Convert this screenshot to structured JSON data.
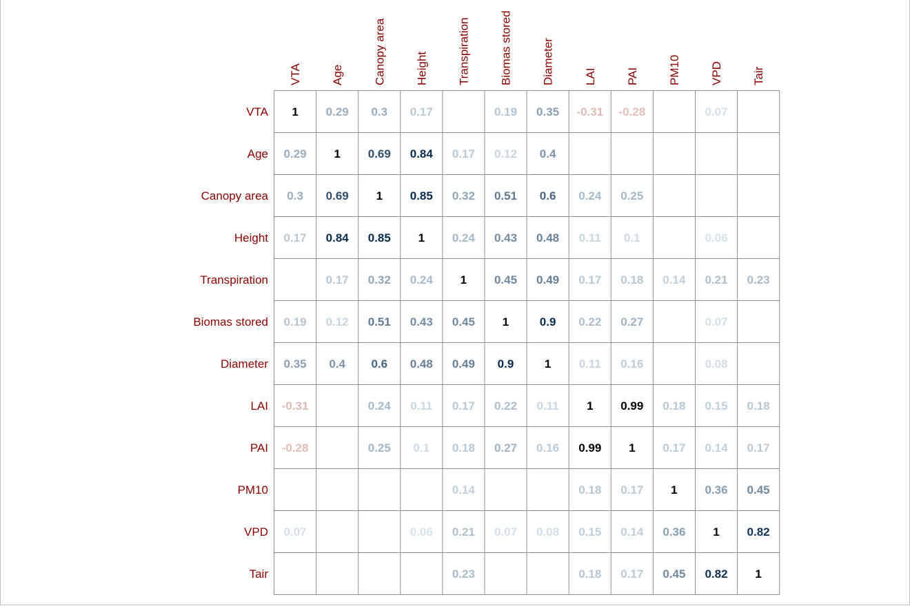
{
  "chart_data": {
    "type": "heatmap",
    "title": "",
    "variables": [
      "VTA",
      "Age",
      "Canopy area",
      "Height",
      "Transpiration",
      "Biomas stored",
      "Diameter",
      "LAI",
      "PAI",
      "PM10",
      "VPD",
      "Tair"
    ],
    "matrix": [
      [
        1,
        0.29,
        0.3,
        0.17,
        null,
        0.19,
        0.35,
        -0.31,
        -0.28,
        null,
        0.07,
        null
      ],
      [
        0.29,
        1,
        0.69,
        0.84,
        0.17,
        0.12,
        0.4,
        null,
        null,
        null,
        null,
        null
      ],
      [
        0.3,
        0.69,
        1,
        0.85,
        0.32,
        0.51,
        0.6,
        0.24,
        0.25,
        null,
        null,
        null
      ],
      [
        0.17,
        0.84,
        0.85,
        1,
        0.24,
        0.43,
        0.48,
        0.11,
        0.1,
        null,
        0.06,
        null
      ],
      [
        null,
        0.17,
        0.32,
        0.24,
        1,
        0.45,
        0.49,
        0.17,
        0.18,
        0.14,
        0.21,
        0.23
      ],
      [
        0.19,
        0.12,
        0.51,
        0.43,
        0.45,
        1,
        0.9,
        0.22,
        0.27,
        null,
        0.07,
        null
      ],
      [
        0.35,
        0.4,
        0.6,
        0.48,
        0.49,
        0.9,
        1,
        0.11,
        0.16,
        null,
        0.08,
        null
      ],
      [
        -0.31,
        null,
        0.24,
        0.11,
        0.17,
        0.22,
        0.11,
        1,
        0.99,
        0.18,
        0.15,
        0.18
      ],
      [
        -0.28,
        null,
        0.25,
        0.1,
        0.18,
        0.27,
        0.16,
        0.99,
        1,
        0.17,
        0.14,
        0.17
      ],
      [
        null,
        null,
        null,
        null,
        0.14,
        null,
        null,
        0.18,
        0.17,
        1,
        0.36,
        0.45
      ],
      [
        0.07,
        null,
        null,
        0.06,
        0.21,
        0.07,
        0.08,
        0.15,
        0.14,
        0.36,
        1,
        0.82
      ],
      [
        null,
        null,
        null,
        null,
        0.23,
        null,
        null,
        0.18,
        0.17,
        0.45,
        0.82,
        1
      ]
    ],
    "value_range": [
      -1,
      1
    ],
    "grid": true,
    "legend": "none",
    "colors": {
      "label": "#8b0000",
      "positive_strong": "#052a4c",
      "positive_weak": "#d8e5ee",
      "negative_strong": "#67001f",
      "negative_weak": "#f7e2d4",
      "grid": "#8c8c8c"
    }
  }
}
